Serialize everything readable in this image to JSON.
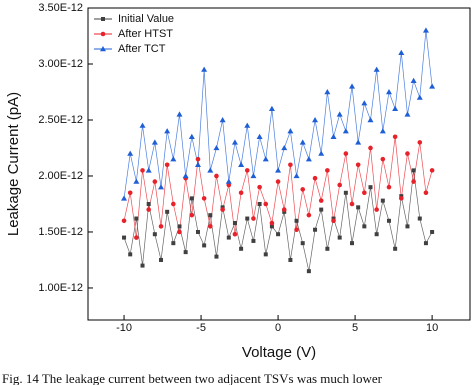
{
  "chart_data": {
    "type": "line",
    "x_label": "Voltage (V)",
    "y_label": "Leakage Current (pA)",
    "caption": "Fig. 14   The leakage current between two adjacent TSVs was much lower",
    "x": [
      -10,
      -9.6,
      -9.2,
      -8.8,
      -8.4,
      -8,
      -7.6,
      -7.2,
      -6.8,
      -6.4,
      -6,
      -5.6,
      -5.2,
      -4.8,
      -4.4,
      -4,
      -3.6,
      -3.2,
      -2.8,
      -2.4,
      -2,
      -1.6,
      -1.2,
      -0.8,
      -0.4,
      0,
      0.4,
      0.8,
      1.2,
      1.6,
      2,
      2.4,
      2.8,
      3.2,
      3.6,
      4,
      4.4,
      4.8,
      5.2,
      5.6,
      6,
      6.4,
      6.8,
      7.2,
      7.6,
      8,
      8.4,
      8.8,
      9.2,
      9.6,
      10
    ],
    "series": [
      {
        "name": "Initial Value",
        "color": "#404040",
        "marker": "square",
        "values": [
          1.45e-12,
          1.3e-12,
          1.62e-12,
          1.2e-12,
          1.75e-12,
          1.48e-12,
          1.25e-12,
          1.68e-12,
          1.4e-12,
          1.55e-12,
          1.32e-12,
          1.8e-12,
          1.5e-12,
          1.38e-12,
          1.65e-12,
          1.28e-12,
          1.72e-12,
          1.45e-12,
          1.58e-12,
          1.35e-12,
          1.62e-12,
          1.42e-12,
          1.75e-12,
          1.3e-12,
          1.55e-12,
          1.48e-12,
          1.68e-12,
          1.25e-12,
          1.6e-12,
          1.4e-12,
          1.15e-12,
          1.52e-12,
          1.7e-12,
          1.35e-12,
          1.62e-12,
          1.45e-12,
          1.85e-12,
          1.4e-12,
          1.72e-12,
          1.55e-12,
          1.9e-12,
          1.48e-12,
          1.78e-12,
          1.6e-12,
          1.35e-12,
          1.82e-12,
          1.55e-12,
          2.05e-12,
          1.62e-12,
          1.4e-12,
          1.5e-12
        ]
      },
      {
        "name": "After HTST",
        "color": "#e8222a",
        "marker": "circle",
        "values": [
          1.6e-12,
          1.85e-12,
          1.45e-12,
          2.05e-12,
          1.7e-12,
          1.95e-12,
          1.55e-12,
          2.1e-12,
          1.75e-12,
          1.5e-12,
          1.98e-12,
          1.65e-12,
          2.15e-12,
          1.8e-12,
          1.55e-12,
          2e-12,
          1.7e-12,
          1.92e-12,
          1.48e-12,
          1.85e-12,
          2.05e-12,
          1.62e-12,
          1.9e-12,
          1.75e-12,
          1.58e-12,
          1.95e-12,
          1.7e-12,
          2.1e-12,
          1.52e-12,
          1.88e-12,
          1.65e-12,
          1.98e-12,
          1.78e-12,
          2.05e-12,
          1.6e-12,
          1.92e-12,
          2.2e-12,
          1.75e-12,
          2.1e-12,
          1.85e-12,
          2.25e-12,
          1.7e-12,
          2.15e-12,
          1.9e-12,
          2.35e-12,
          1.8e-12,
          2.2e-12,
          1.95e-12,
          2.3e-12,
          1.85e-12,
          2.05e-12
        ]
      },
      {
        "name": "After TCT",
        "color": "#1f5fd6",
        "marker": "triangle",
        "values": [
          1.8e-12,
          2.2e-12,
          1.95e-12,
          2.45e-12,
          2.05e-12,
          2.3e-12,
          1.9e-12,
          2.4e-12,
          2.15e-12,
          2.55e-12,
          2e-12,
          2.35e-12,
          2.1e-12,
          2.95e-12,
          2.05e-12,
          2.25e-12,
          2.5e-12,
          1.95e-12,
          2.3e-12,
          2.1e-12,
          2.45e-12,
          2e-12,
          2.35e-12,
          2.15e-12,
          2.6e-12,
          2.05e-12,
          2.25e-12,
          2.4e-12,
          2e-12,
          2.3e-12,
          2.15e-12,
          2.5e-12,
          2.2e-12,
          2.75e-12,
          2.35e-12,
          2.55e-12,
          2.4e-12,
          2.8e-12,
          2.3e-12,
          2.65e-12,
          2.5e-12,
          2.95e-12,
          2.4e-12,
          2.75e-12,
          2.6e-12,
          3.1e-12,
          2.55e-12,
          2.85e-12,
          2.7e-12,
          3.3e-12,
          2.8e-12
        ]
      }
    ],
    "xlim": [
      -12.34,
      12.46
    ],
    "xticks": [
      -10,
      -5,
      0,
      5,
      10
    ],
    "ylim": [
      7.14e-13,
      3.5e-12
    ],
    "yticks": [
      {
        "value": 1e-12,
        "label": "1.00E-12"
      },
      {
        "value": 1.5e-12,
        "label": "1.50E-12"
      },
      {
        "value": 2e-12,
        "label": "2.00E-12"
      },
      {
        "value": 2.5e-12,
        "label": "2.50E-12"
      },
      {
        "value": 3e-12,
        "label": "3.00E-12"
      },
      {
        "value": 3.5e-12,
        "label": "3.50E-12"
      }
    ],
    "legend": "top-left"
  }
}
